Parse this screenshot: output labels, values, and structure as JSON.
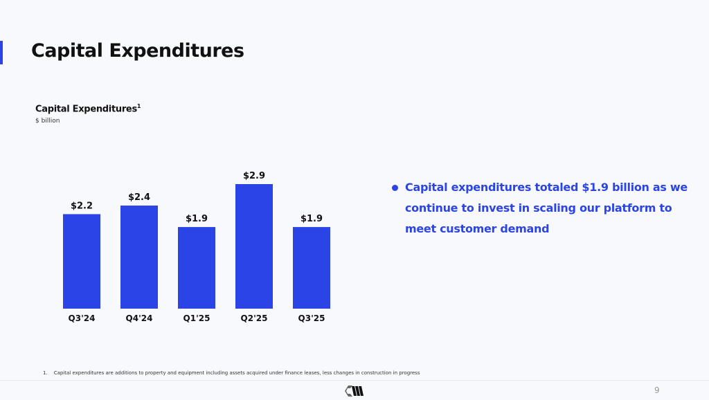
{
  "slide": {
    "title": "Capital Expenditures",
    "bullet": "Capital expenditures totaled $1.9 billion as we continue to invest in scaling our platform to meet customer demand",
    "footnote_number": "1.",
    "footnote": "Capital expenditures are additions to property and equipment including assets acquired under finance leases, less changes in construction in progress",
    "page_number": "9",
    "accent_color": "#2b44e6"
  },
  "chart_data": {
    "type": "bar",
    "title": "Capital Expenditures",
    "title_superscript": "1",
    "subtitle": "$ billion",
    "categories": [
      "Q3'24",
      "Q4'24",
      "Q1'25",
      "Q2'25",
      "Q3'25"
    ],
    "values": [
      2.2,
      2.4,
      1.9,
      2.9,
      1.9
    ],
    "data_labels": [
      "$2.2",
      "$2.4",
      "$1.9",
      "$2.9",
      "$1.9"
    ],
    "ylim": [
      0,
      2.9
    ],
    "grid": false,
    "bar_color": "#2b44e6"
  }
}
